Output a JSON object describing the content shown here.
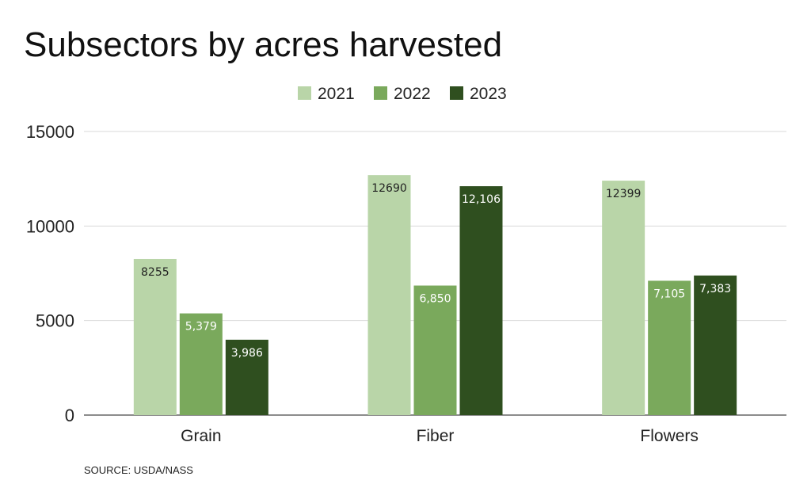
{
  "chart_data": {
    "type": "bar",
    "title": "Subsectors by acres harvested",
    "categories": [
      "Grain",
      "Fiber",
      "Flowers"
    ],
    "series": [
      {
        "name": "2021",
        "color": "#b9d5a8",
        "values": [
          8255,
          12690,
          12399
        ],
        "labels": [
          "8255",
          "12690",
          "12399"
        ],
        "label_color": "#222222"
      },
      {
        "name": "2022",
        "color": "#7aa95c",
        "values": [
          5379,
          6850,
          7105
        ],
        "labels": [
          "5,379",
          "6,850",
          "7,105"
        ],
        "label_color": "#ffffff"
      },
      {
        "name": "2023",
        "color": "#2f4f1f",
        "values": [
          3986,
          12106,
          7383
        ],
        "labels": [
          "3,986",
          "12,106",
          "7,383"
        ],
        "label_color": "#ffffff"
      }
    ],
    "yticks": [
      "0",
      "5000",
      "10000",
      "15000"
    ],
    "ylim": [
      0,
      15000
    ],
    "grid": true,
    "legend_position": "top-center",
    "source": "SOURCE: USDA/NASS"
  }
}
